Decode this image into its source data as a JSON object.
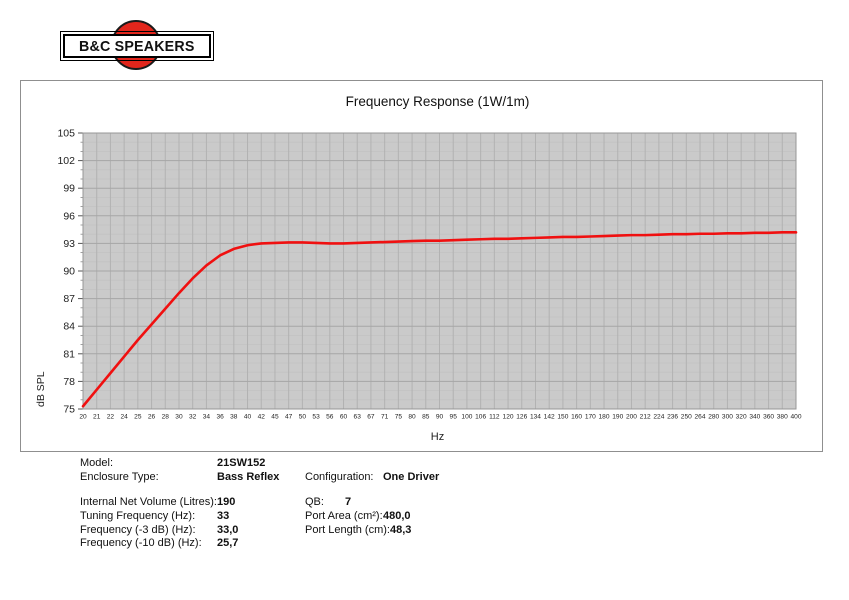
{
  "logo": {
    "brand": "B&C SPEAKERS",
    "circle_color": "#e2261c"
  },
  "chart_data": {
    "type": "line",
    "title": "Frequency Response (1W/1m)",
    "xlabel": "Hz",
    "ylabel": "dB SPL",
    "x_scale": "logarithmic",
    "ylim": [
      75,
      105
    ],
    "y_tick_step": 3,
    "grid": true,
    "legend": "none",
    "plot_bg": "#cacaca",
    "categories": [
      20,
      21,
      22,
      24,
      25,
      26,
      28,
      30,
      32,
      34,
      36,
      38,
      40,
      42,
      45,
      47,
      50,
      53,
      56,
      60,
      63,
      67,
      71,
      75,
      80,
      85,
      90,
      95,
      100,
      106,
      112,
      120,
      126,
      134,
      142,
      150,
      160,
      170,
      180,
      190,
      200,
      212,
      224,
      236,
      250,
      264,
      280,
      300,
      320,
      340,
      360,
      380,
      400
    ],
    "series": [
      {
        "name": "SPL (1W/1m)",
        "color": "#f01010",
        "values": [
          75.3,
          77.1,
          78.9,
          80.7,
          82.5,
          84.2,
          85.9,
          87.6,
          89.2,
          90.6,
          91.7,
          92.4,
          92.8,
          93.0,
          93.05,
          93.1,
          93.1,
          93.05,
          93.0,
          93.0,
          93.05,
          93.1,
          93.15,
          93.2,
          93.25,
          93.3,
          93.3,
          93.35,
          93.4,
          93.45,
          93.5,
          93.5,
          93.55,
          93.6,
          93.65,
          93.7,
          93.7,
          93.75,
          93.8,
          93.85,
          93.9,
          93.9,
          93.95,
          94.0,
          94.0,
          94.05,
          94.05,
          94.1,
          94.1,
          94.15,
          94.15,
          94.2,
          94.2
        ]
      }
    ]
  },
  "specs": {
    "left_top": [
      {
        "label": "Model:",
        "value": "21SW152"
      },
      {
        "label": "Enclosure Type:",
        "value": "Bass Reflex"
      }
    ],
    "right_top": [
      {
        "label": "Configuration:",
        "value": "One Driver"
      }
    ],
    "left_bottom": [
      {
        "label": "Internal Net Volume (Litres):",
        "value": "190"
      },
      {
        "label": "Tuning Frequency (Hz):",
        "value": "33"
      },
      {
        "label": "Frequency (-3 dB) (Hz):",
        "value": "33,0"
      },
      {
        "label": "Frequency (-10 dB) (Hz):",
        "value": "25,7"
      }
    ],
    "right_bottom": [
      {
        "label": "QB:",
        "value": "7"
      },
      {
        "label": "Port Area (cm²):",
        "value": "480,0"
      },
      {
        "label": "Port Length (cm):",
        "value": "48,3"
      }
    ]
  }
}
